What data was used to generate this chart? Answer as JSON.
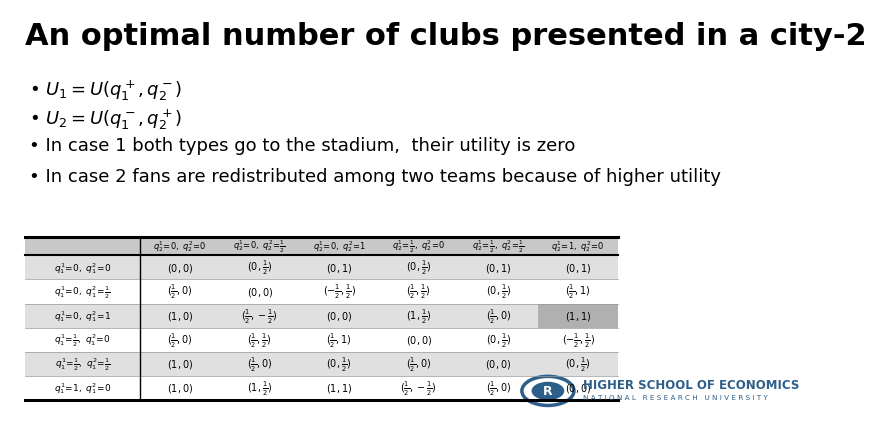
{
  "title": "An optimal number of clubs presented in a city-2",
  "title_fontsize": 22,
  "bg_color": "#ffffff",
  "bullet_items": [
    "$U_1 = U(q_1^+, q_2^-)$",
    "$U_2 = U(q_1^-, q_2^+)$",
    "In case 1 both types go to the stadium,  their utility is zero",
    "In case 2 fans are redistributed among two teams because of higher utility"
  ],
  "table_header": [
    "",
    "$q_2^1\\!=\\!0,\\ q_2^2\\!=\\!0$",
    "$q_2^1\\!=\\!0,\\ q_2^2\\!=\\!\\frac{1}{2}$",
    "$q_2^1\\!=\\!0,\\ q_2^2\\!=\\!1$",
    "$q_2^1\\!=\\!\\frac{1}{2},\\ q_2^2\\!=\\!0$",
    "$q_2^1\\!=\\!\\frac{1}{2},\\ q_2^2\\!=\\!\\frac{1}{2}$",
    "$q_2^1\\!=\\!1,\\ q_2^2\\!=\\!0$"
  ],
  "table_rows": [
    {
      "label": "$q_1^1\\!=\\!0,\\ q_1^2\\!=\\!0$",
      "cells": [
        "$(0,0)$",
        "$(0,\\frac{1}{2})$",
        "$(0,1)$",
        "$(0,\\frac{1}{2})$",
        "$(0,1)$",
        "$(0,1)$"
      ],
      "shade": true
    },
    {
      "label": "$q_1^1\\!=\\!0,\\ q_1^2\\!=\\!\\frac{1}{2}$",
      "cells": [
        "$(\\frac{1}{2},0)$",
        "$(0,0)$",
        "$(-\\frac{1}{2},\\frac{1}{2})$",
        "$(\\frac{1}{2},\\frac{1}{2})$",
        "$(0,\\frac{1}{2})$",
        "$(\\frac{1}{2},1)$"
      ],
      "shade": false
    },
    {
      "label": "$q_1^1\\!=\\!0,\\ q_1^2\\!=\\!1$",
      "cells": [
        "$(1,0)$",
        "$(\\frac{1}{2},-\\frac{1}{2})$",
        "$(0,0)$",
        "$(1,\\frac{1}{2})$",
        "$(\\frac{1}{2},0)$",
        "$(1,1)$"
      ],
      "shade": true
    },
    {
      "label": "$q_1^1\\!=\\!\\frac{1}{2},\\ q_1^2\\!=\\!0$",
      "cells": [
        "$(\\frac{1}{2},0)$",
        "$(\\frac{1}{2},\\frac{1}{2})$",
        "$(\\frac{1}{2},1)$",
        "$(0,0)$",
        "$(0,\\frac{1}{2})$",
        "$(-\\frac{1}{2},\\frac{1}{2})$"
      ],
      "shade": false
    },
    {
      "label": "$q_1^1\\!=\\!\\frac{1}{2},\\ q_1^2\\!=\\!\\frac{1}{2}$",
      "cells": [
        "$(1,0)$",
        "$(\\frac{1}{2},0)$",
        "$(0,\\frac{1}{2})$",
        "$(\\frac{1}{2},0)$",
        "$(0,0)$",
        "$(0,\\frac{1}{2})$"
      ],
      "shade": true
    },
    {
      "label": "$q_1^1\\!=\\!1,\\ q_1^2\\!=\\!0$",
      "cells": [
        "$(1,0)$",
        "$(1,\\frac{1}{2})$",
        "$(1,1)$",
        "$(\\frac{1}{2},-\\frac{1}{2})$",
        "$(\\frac{1}{2},0)$",
        "$(0,0)$"
      ],
      "shade": false
    }
  ],
  "highlighted_cell_row": 2,
  "highlighted_cell_col": 5,
  "highlight_color": "#b0b0b0",
  "shade_color": "#e0e0e0",
  "table_header_shade": "#c8c8c8",
  "hse_text_color": "#2e5f8a",
  "logo_color": "#2e5f8a"
}
